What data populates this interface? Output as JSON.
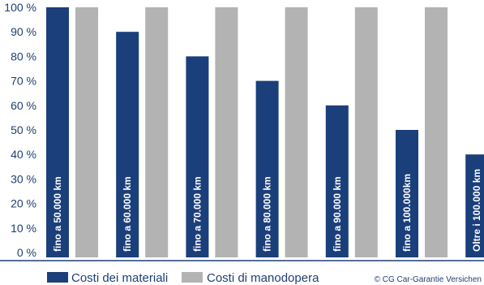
{
  "chart_data": {
    "type": "bar",
    "title": "",
    "xlabel": "",
    "ylabel": "",
    "ylim": [
      0,
      100
    ],
    "y_ticks": [
      "0 %",
      "10 %",
      "20 %",
      "30 %",
      "40 %",
      "50 %",
      "60 %",
      "70 %",
      "80 %",
      "90 %",
      "100 %"
    ],
    "categories": [
      "fino a 50.000 km",
      "fino a 60.000 km",
      "fino a 70.000 km",
      "fino a 80.000 km",
      "fino a 90.000 km",
      "fino a 100.000km",
      "Oltre i 100.000 km"
    ],
    "series": [
      {
        "name": "Costi dei materiali",
        "color": "#1b3f7a",
        "values": [
          100,
          90,
          80,
          70,
          60,
          50,
          40
        ]
      },
      {
        "name": "Costi di manodopera",
        "color": "#b3b3b3",
        "values": [
          100,
          100,
          100,
          100,
          100,
          100,
          null
        ]
      }
    ],
    "grid": false,
    "legend_position": "bottom-left"
  },
  "copyright": "© CG Car-Garantie Versichen"
}
